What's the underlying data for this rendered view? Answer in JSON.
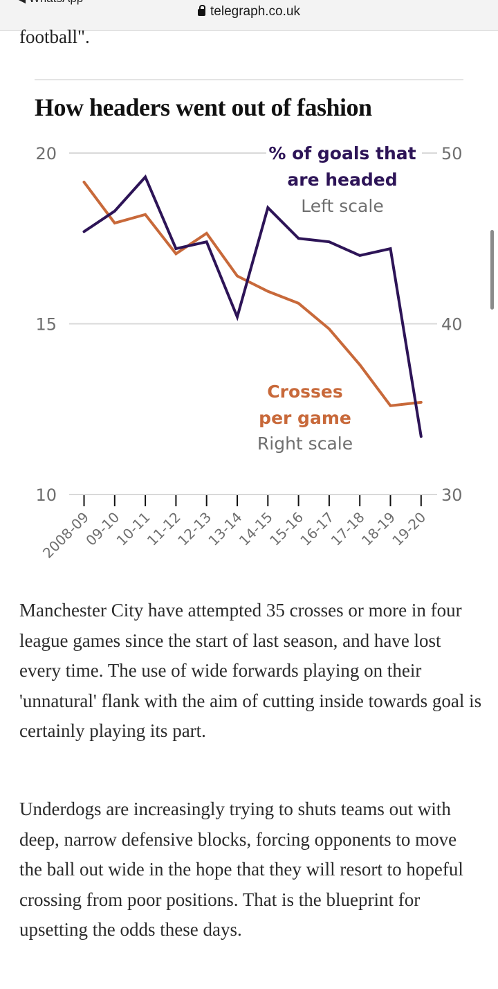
{
  "browser": {
    "back_app": "◀ WhatsApp",
    "url": "telegraph.co.uk",
    "lock_icon": "lock-icon"
  },
  "article": {
    "lead_fragment": "football\".",
    "paragraphs": [
      "Manchester City have attempted 35 crosses or more in four league games since the start of last season, and have lost every time. The use of wide forwards playing on their 'unnatural' flank with the aim of cutting inside towards goal is certainly playing its part.",
      "Underdogs are increasingly trying to shuts teams out with deep, narrow defensive blocks, forcing opponents to move the ball out wide in the hope that they will resort to hopeful crossing from poor positions. That is the blueprint for upsetting the odds these days."
    ]
  },
  "colors": {
    "headed": "#2d1457",
    "crosses": "#c8693a",
    "grid": "#d9d9d9",
    "axis_text": "#6f6f6f"
  },
  "chart_data": {
    "type": "line",
    "title": "How headers went out of fashion",
    "categories": [
      "2008-09",
      "09-10",
      "10-11",
      "11-12",
      "12-13",
      "13-14",
      "14-15",
      "15-16",
      "16-17",
      "17-18",
      "18-19",
      "19-20"
    ],
    "left_axis": {
      "ylim": [
        10,
        20
      ],
      "ticks": [
        "10",
        "15",
        "20"
      ]
    },
    "right_axis": {
      "ylim": [
        30,
        50
      ],
      "ticks": [
        "30",
        "40",
        "50"
      ]
    },
    "grid": true,
    "series": [
      {
        "name": "% of goals that are headed",
        "label_lines": [
          "% of goals that",
          "are headed"
        ],
        "scale_label": "Left scale",
        "axis": "left",
        "values": [
          17.7,
          18.3,
          19.3,
          17.2,
          17.4,
          15.2,
          18.4,
          17.5,
          17.4,
          17.0,
          17.2,
          11.7
        ]
      },
      {
        "name": "Crosses per game",
        "label_lines": [
          "Crosses",
          "per game"
        ],
        "scale_label": "Right scale",
        "axis": "right",
        "values": [
          48.3,
          45.9,
          46.4,
          44.1,
          45.3,
          42.8,
          41.9,
          41.2,
          39.7,
          37.6,
          35.2,
          35.4
        ]
      }
    ]
  }
}
